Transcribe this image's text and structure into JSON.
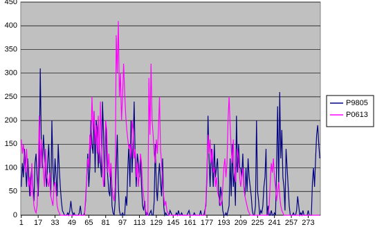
{
  "chart_data": {
    "type": "line",
    "categories": [
      "1",
      null,
      null,
      null,
      null,
      null,
      null,
      null,
      null,
      null,
      null,
      null,
      null,
      null,
      null,
      null,
      "17",
      null,
      null,
      null,
      null,
      null,
      null,
      null,
      null,
      null,
      null,
      null,
      null,
      null,
      null,
      null,
      "33",
      null,
      null,
      null,
      null,
      null,
      null,
      null,
      null,
      null,
      null,
      null,
      null,
      null,
      null,
      null,
      "49",
      null,
      null,
      null,
      null,
      null,
      null,
      null,
      null,
      null,
      null,
      null,
      null,
      null,
      null,
      null,
      "65",
      null,
      null,
      null,
      null,
      null,
      null,
      null,
      null,
      null,
      null,
      null,
      null,
      null,
      null,
      null,
      "81",
      null,
      null,
      null,
      null,
      null,
      null,
      null,
      null,
      null,
      null,
      null,
      null,
      null,
      null,
      null,
      "97",
      null,
      null,
      null,
      null,
      null,
      null,
      null,
      null,
      null,
      null,
      null,
      null,
      null,
      null,
      null,
      "113",
      null,
      null,
      null,
      null,
      null,
      null,
      null,
      null,
      null,
      null,
      null,
      null,
      null,
      null,
      null,
      "129",
      null,
      null,
      null,
      null,
      null,
      null,
      null,
      null,
      null,
      null,
      null,
      null,
      null,
      null,
      null,
      "145",
      null,
      null,
      null,
      null,
      null,
      null,
      null,
      null,
      null,
      null,
      null,
      null,
      null,
      null,
      null,
      "161",
      null,
      null,
      null,
      null,
      null,
      null,
      null,
      null,
      null,
      null,
      null,
      null,
      null,
      null,
      null,
      "177",
      null,
      null,
      null,
      null,
      null,
      null,
      null,
      null,
      null,
      null,
      null,
      null,
      null,
      null,
      null,
      "193",
      null,
      null,
      null,
      null,
      null,
      null,
      null,
      null,
      null,
      null,
      null,
      null,
      null,
      null,
      null,
      "209",
      null,
      null,
      null,
      null,
      null,
      null,
      null,
      null,
      null,
      null,
      null,
      null,
      null,
      null,
      null,
      "225",
      null,
      null,
      null,
      null,
      null,
      null,
      null,
      null,
      null,
      null,
      null,
      null,
      null,
      null,
      null,
      "241",
      null,
      null,
      null,
      null,
      null,
      null,
      null,
      null,
      null,
      null,
      null,
      null,
      null,
      null,
      null,
      "257",
      null,
      null,
      null,
      null,
      null,
      null,
      null,
      null,
      null,
      null,
      null,
      null,
      null,
      null,
      null,
      "273",
      null,
      null,
      null,
      null,
      null,
      null,
      null,
      null,
      null,
      null,
      null
    ],
    "series": [
      {
        "name": "P9805",
        "color": "#000080",
        "values": [
          60,
          110,
          80,
          140,
          100,
          60,
          120,
          90,
          40,
          80,
          100,
          60,
          30,
          110,
          130,
          80,
          40,
          100,
          310,
          150,
          100,
          170,
          130,
          90,
          60,
          110,
          150,
          80,
          40,
          200,
          100,
          60,
          120,
          80,
          40,
          150,
          100,
          60,
          30,
          10,
          5,
          0,
          0,
          0,
          5,
          0,
          10,
          30,
          10,
          0,
          5,
          0,
          0,
          0,
          0,
          5,
          20,
          0,
          0,
          0,
          5,
          30,
          80,
          130,
          60,
          100,
          200,
          150,
          130,
          220,
          90,
          200,
          180,
          100,
          150,
          110,
          80,
          240,
          170,
          60,
          200,
          120,
          80,
          50,
          40,
          110,
          20,
          5,
          0,
          30,
          100,
          170,
          60,
          10,
          0,
          0,
          5,
          0,
          0,
          40,
          20,
          100,
          150,
          60,
          200,
          90,
          150,
          240,
          120,
          60,
          130,
          110,
          80,
          120,
          60,
          20,
          10,
          30,
          0,
          5,
          0,
          0,
          5,
          10,
          0,
          0,
          30,
          150,
          60,
          30,
          80,
          110,
          70,
          40,
          120,
          20,
          0,
          5,
          0,
          0,
          0,
          10,
          5,
          0,
          0,
          0,
          0,
          5,
          0,
          10,
          0,
          0,
          5,
          0,
          0,
          0,
          0,
          0,
          5,
          10,
          0,
          0,
          0,
          0,
          5,
          0,
          0,
          0,
          0,
          0,
          10,
          0,
          0,
          0,
          10,
          20,
          80,
          210,
          120,
          60,
          140,
          100,
          60,
          150,
          80,
          100,
          120,
          60,
          20,
          60,
          40,
          10,
          0,
          0,
          5,
          0,
          10,
          20,
          120,
          40,
          150,
          60,
          90,
          20,
          210,
          90,
          150,
          100,
          100,
          80,
          130,
          60,
          40,
          100,
          50,
          120,
          80,
          60,
          40,
          10,
          0,
          0,
          20,
          200,
          50,
          30,
          0,
          10,
          5,
          20,
          60,
          80,
          140,
          0,
          20,
          0,
          0,
          10,
          0,
          0,
          5,
          0,
          100,
          230,
          60,
          260,
          120,
          180,
          80,
          60,
          10,
          140,
          100,
          60,
          20,
          0,
          0,
          0,
          5,
          0,
          0,
          10,
          40,
          20,
          0,
          5,
          0,
          10,
          0,
          0,
          0,
          0,
          10,
          0,
          0,
          0,
          70,
          100,
          60,
          120,
          170,
          190,
          150,
          120
        ]
      },
      {
        "name": "P0613",
        "color": "#ff00ff",
        "values": [
          160,
          130,
          150,
          120,
          90,
          140,
          100,
          60,
          80,
          40,
          110,
          50,
          20,
          10,
          5,
          20,
          80,
          210,
          100,
          160,
          120,
          90,
          60,
          140,
          90,
          70,
          60,
          90,
          40,
          30,
          20,
          60,
          70,
          50,
          20,
          10,
          5,
          0,
          0,
          0,
          0,
          0,
          0,
          0,
          0,
          0,
          0,
          0,
          0,
          0,
          0,
          0,
          0,
          0,
          0,
          0,
          0,
          0,
          0,
          0,
          0,
          40,
          80,
          120,
          100,
          170,
          140,
          250,
          180,
          220,
          150,
          190,
          130,
          210,
          110,
          240,
          150,
          100,
          60,
          90,
          200,
          180,
          90,
          130,
          80,
          110,
          60,
          40,
          30,
          60,
          380,
          300,
          410,
          250,
          300,
          200,
          250,
          320,
          260,
          210,
          180,
          160,
          140,
          150,
          120,
          200,
          180,
          120,
          140,
          80,
          110,
          60,
          90,
          130,
          110,
          60,
          40,
          20,
          10,
          0,
          0,
          290,
          170,
          320,
          200,
          170,
          130,
          110,
          160,
          130,
          180,
          250,
          140,
          110,
          70,
          40,
          20,
          30,
          10,
          5,
          0,
          0,
          0,
          0,
          0,
          0,
          0,
          0,
          0,
          0,
          0,
          0,
          0,
          0,
          0,
          0,
          0,
          0,
          0,
          0,
          0,
          0,
          0,
          0,
          0,
          0,
          0,
          0,
          0,
          0,
          0,
          0,
          0,
          0,
          0,
          30,
          100,
          170,
          130,
          160,
          110,
          140,
          90,
          100,
          60,
          80,
          50,
          40,
          30,
          20,
          30,
          60,
          100,
          120,
          80,
          110,
          200,
          250,
          190,
          140,
          110,
          160,
          90,
          70,
          100,
          140,
          120,
          80,
          60,
          80,
          100,
          60,
          40,
          30,
          20,
          10,
          5,
          0,
          0,
          0,
          0,
          0,
          0,
          0,
          0,
          0,
          0,
          0,
          0,
          0,
          0,
          0,
          0,
          0,
          0,
          20,
          70,
          110,
          90,
          120,
          80,
          60,
          30,
          50,
          70,
          40,
          20,
          10,
          5,
          0,
          0,
          0,
          0,
          0,
          0,
          0,
          0,
          0,
          0,
          0,
          0,
          0,
          0,
          0,
          0,
          0,
          0,
          0,
          0,
          0,
          0,
          0,
          0,
          0,
          0,
          0,
          0,
          0,
          0,
          0,
          0,
          0,
          0,
          0
        ]
      }
    ],
    "ylim": [
      0,
      450
    ],
    "yticks": [
      0,
      50,
      100,
      150,
      200,
      250,
      300,
      350,
      400,
      450
    ],
    "grid": true,
    "legend": "right"
  }
}
